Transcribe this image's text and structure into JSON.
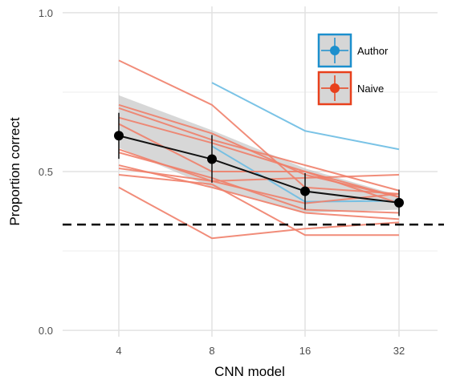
{
  "chart_data": {
    "type": "line",
    "xlabel": "CNN model",
    "ylabel": "Proportion correct",
    "categories": [
      "4",
      "8",
      "16",
      "32"
    ],
    "ylim": [
      -0.02,
      1.02
    ],
    "yticks": [
      0.0,
      0.5,
      1.0
    ],
    "ytick_labels": [
      "0.0",
      "0.5",
      "1.0"
    ],
    "grid": true,
    "chance_line": 0.333,
    "legend": {
      "placement": "top-right",
      "entries": [
        {
          "label": "Author",
          "color": "#1c8fcd"
        },
        {
          "label": "Naive",
          "color": "#e8401c"
        }
      ]
    },
    "mean_series": {
      "values": [
        0.613,
        0.539,
        0.438,
        0.402
      ],
      "error_low": [
        0.54,
        0.465,
        0.38,
        0.36
      ],
      "error_high": [
        0.685,
        0.615,
        0.495,
        0.443
      ],
      "ribbon_low": [
        0.575,
        0.45,
        0.37,
        0.38
      ],
      "ribbon_high": [
        0.74,
        0.63,
        0.51,
        0.425
      ],
      "color": "#111111"
    },
    "participants": [
      {
        "group": "Author",
        "values": [
          null,
          0.78,
          0.628,
          0.57
        ]
      },
      {
        "group": "Author",
        "values": [
          null,
          0.58,
          0.405,
          0.408
        ]
      },
      {
        "group": "Naive",
        "values": [
          0.85,
          0.71,
          0.45,
          0.43
        ]
      },
      {
        "group": "Naive",
        "values": [
          0.71,
          0.62,
          0.49,
          0.42
        ]
      },
      {
        "group": "Naive",
        "values": [
          0.7,
          0.6,
          0.52,
          0.44
        ]
      },
      {
        "group": "Naive",
        "values": [
          0.67,
          0.59,
          0.5,
          0.42
        ]
      },
      {
        "group": "Naive",
        "values": [
          0.65,
          0.5,
          0.5,
          0.4
        ]
      },
      {
        "group": "Naive",
        "values": [
          0.57,
          0.47,
          0.4,
          0.43
        ]
      },
      {
        "group": "Naive",
        "values": [
          0.56,
          0.48,
          0.38,
          0.37
        ]
      },
      {
        "group": "Naive",
        "values": [
          0.52,
          0.45,
          0.37,
          0.35
        ]
      },
      {
        "group": "Naive",
        "values": [
          0.51,
          0.47,
          0.48,
          0.49
        ]
      },
      {
        "group": "Naive",
        "values": [
          0.49,
          0.46,
          0.3,
          0.3
        ]
      },
      {
        "group": "Naive",
        "values": [
          0.45,
          0.29,
          0.32,
          0.34
        ]
      }
    ]
  }
}
